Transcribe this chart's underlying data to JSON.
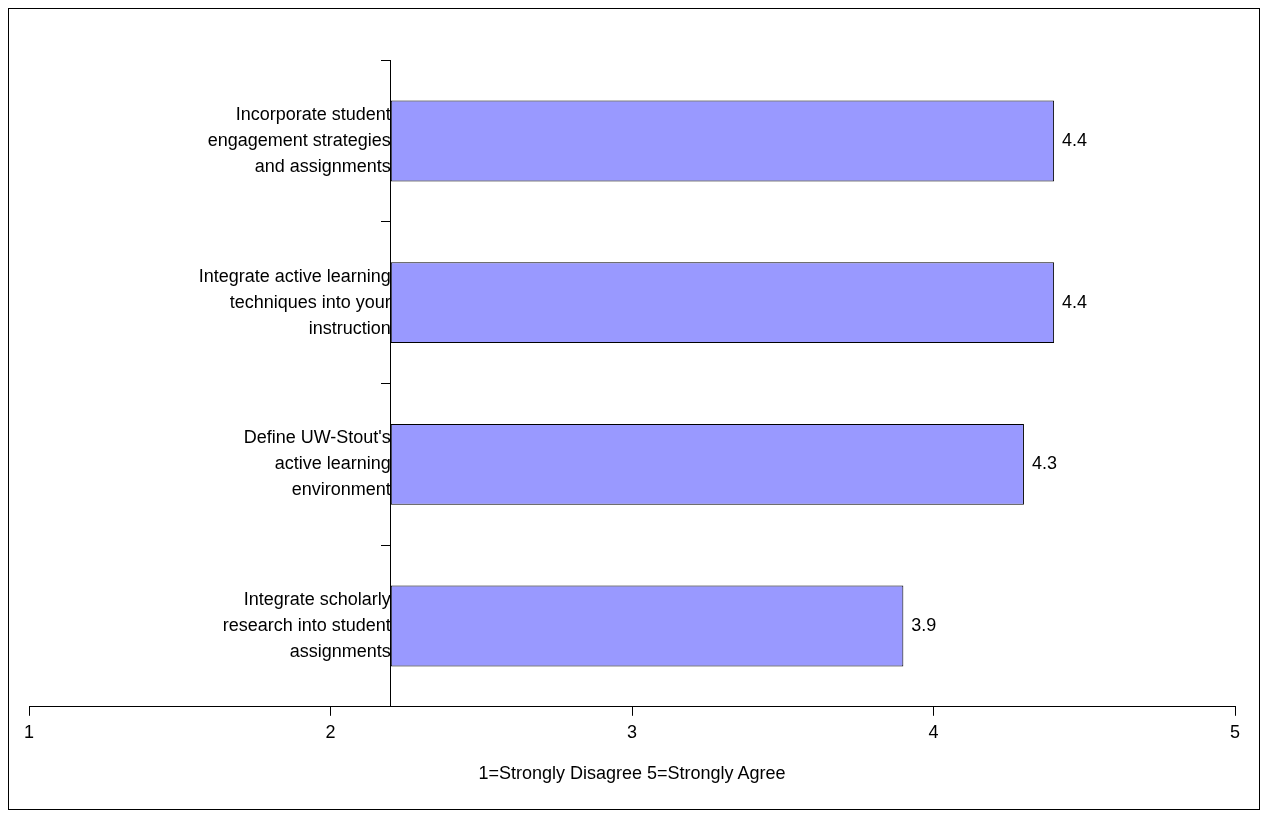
{
  "chart_data": {
    "type": "bar",
    "orientation": "horizontal",
    "categories": [
      "Incorporate student engagement strategies and assignments",
      "Integrate active learning techniques into your instruction",
      "Define UW-Stout's active learning environment",
      "Integrate scholarly research into student assignments"
    ],
    "base": [
      2.2,
      2.2,
      2.2,
      2.2
    ],
    "values": [
      2.2,
      2.2,
      2.1,
      1.7
    ],
    "value_labels": [
      "4.4",
      "4.4",
      "4.3",
      "3.9"
    ],
    "color": "#9999ff",
    "xlabel": "1=Strongly Disagree 5=Strongly Agree",
    "xlim": [
      1,
      5
    ],
    "xticks": [
      1,
      2,
      3,
      4,
      5
    ],
    "grid": false,
    "legend": false
  }
}
